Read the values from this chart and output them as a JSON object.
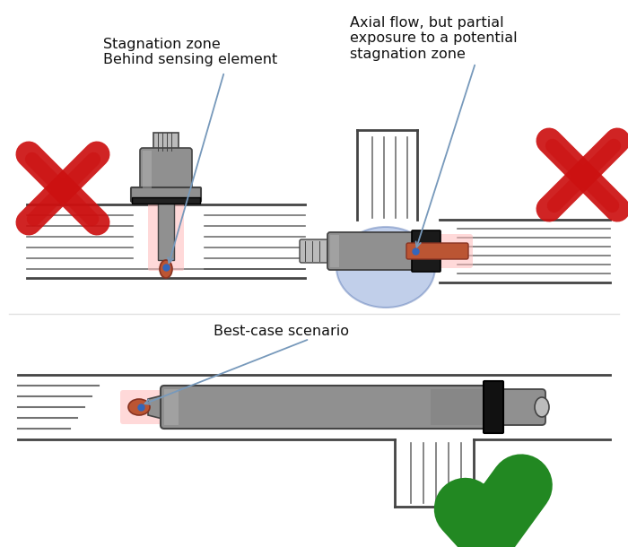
{
  "bg_color": "#ffffff",
  "text_color": "#111111",
  "gray_sensor": "#909090",
  "gray_dark": "#444444",
  "gray_light": "#bbbbbb",
  "gray_mid": "#777777",
  "red_x_color": "#cc1111",
  "green_check_color": "#228822",
  "blue_stagnation": "#6688cc",
  "pink_highlight": "#ffbbbb",
  "flow_line_color": "#444444",
  "annotation_line_color": "#7799bb",
  "label1": "Stagnation zone\nBehind sensing element",
  "label2": "Axial flow, but partial\nexposure to a potential\nstagnation zone",
  "label3": "Best-case scenario"
}
